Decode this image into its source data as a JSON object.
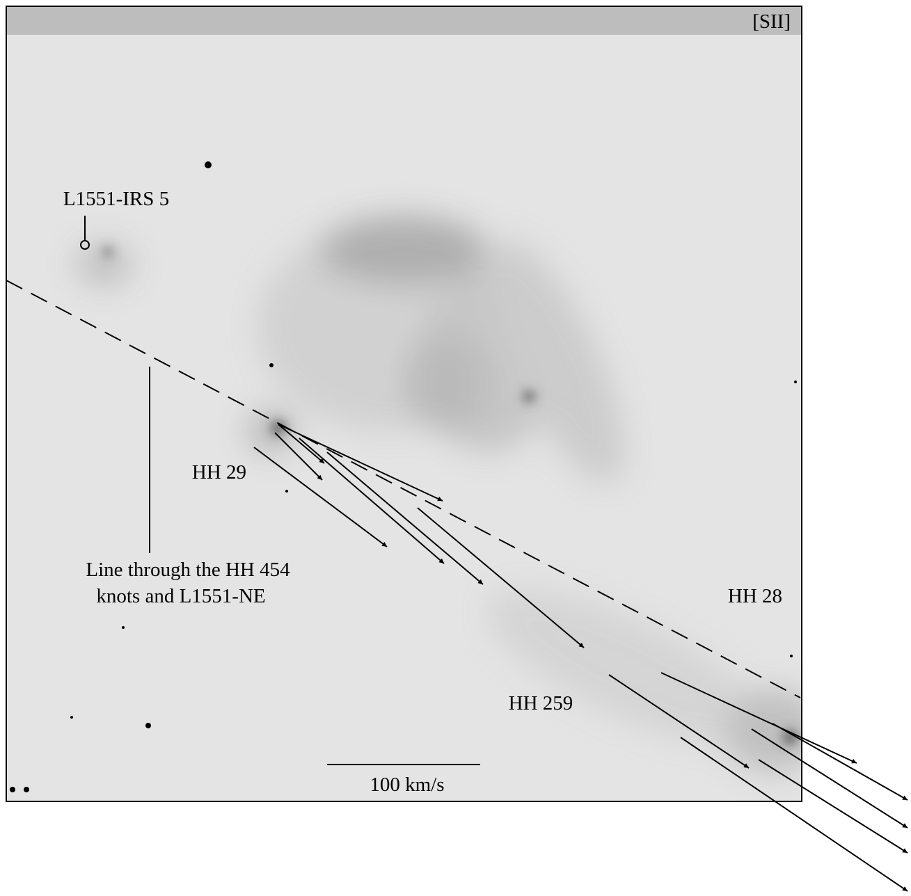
{
  "panel_label": "[SII]",
  "labels": {
    "source": "L1551-IRS 5",
    "hh29": "HH 29",
    "line_note": [
      "Line through the HH 454",
      "knots and L1551-NE"
    ],
    "hh28": "HH 28",
    "hh259": "HH 259"
  },
  "scale_bar": "100 km/s"
}
